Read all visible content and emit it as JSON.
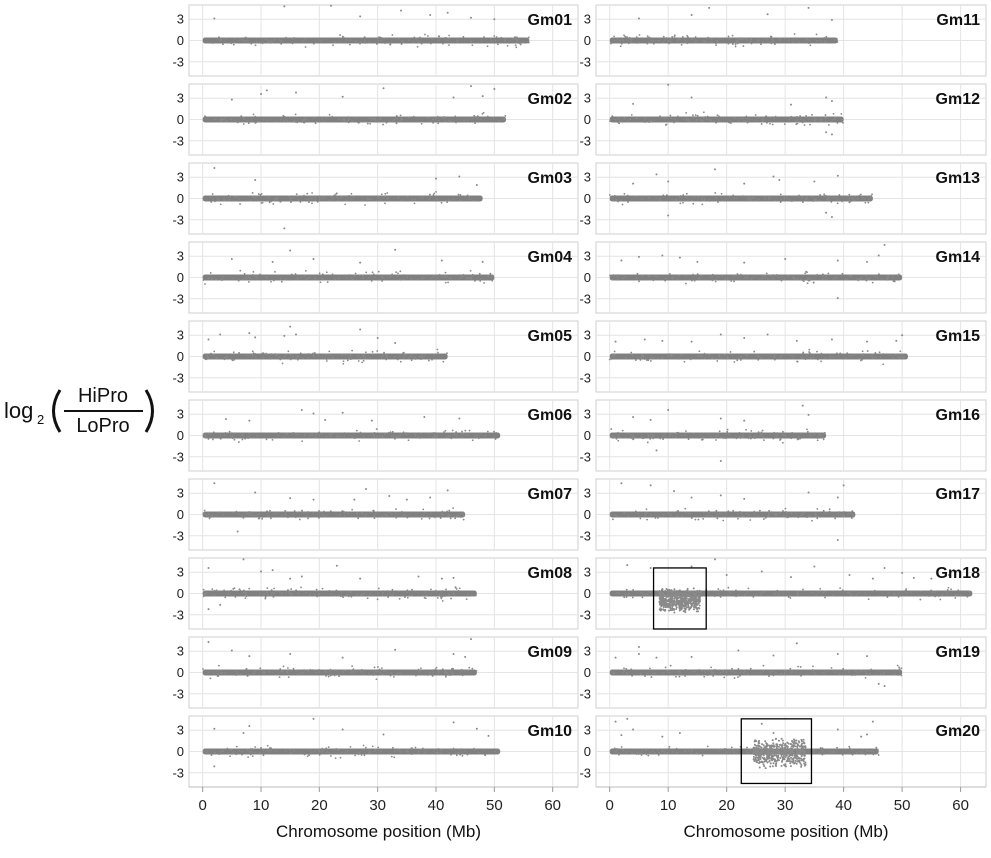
{
  "chart_data": {
    "type": "scatter",
    "ylabel": {
      "prefix": "log",
      "subscript": "2",
      "numerator": "HiPro",
      "denominator": "LoPro"
    },
    "xlabel": "Chromosome position (Mb)",
    "xlim": [
      -2,
      64
    ],
    "ylim": [
      -5,
      5
    ],
    "xticks": [
      0,
      10,
      20,
      30,
      40,
      50,
      60
    ],
    "yticks": [
      3,
      0,
      -3
    ],
    "grid": true,
    "point_color": "#808080",
    "box_color": "#000000",
    "chromosomes": [
      {
        "name": "Gm01",
        "length": 56,
        "outliers": [
          [
            2,
            3.1
          ],
          [
            14,
            4.8
          ],
          [
            22,
            4.9
          ],
          [
            27,
            3.4
          ],
          [
            34,
            4.2
          ],
          [
            39,
            3.6
          ],
          [
            42,
            3.9
          ],
          [
            46,
            3.2
          ],
          [
            50,
            3.0
          ]
        ]
      },
      {
        "name": "Gm02",
        "length": 52,
        "outliers": [
          [
            10,
            3.6
          ],
          [
            11,
            4.1
          ],
          [
            16,
            3.8
          ],
          [
            24,
            3.2
          ],
          [
            31,
            4.4
          ],
          [
            43,
            3.1
          ],
          [
            46,
            4.7
          ],
          [
            48,
            3.3
          ],
          [
            50,
            4.3
          ],
          [
            5,
            2.8
          ]
        ]
      },
      {
        "name": "Gm03",
        "length": 48,
        "outliers": [
          [
            2,
            4.3
          ],
          [
            9,
            2.6
          ],
          [
            40,
            2.8
          ],
          [
            44,
            3.1
          ],
          [
            47,
            1.9
          ],
          [
            14,
            -4.2
          ]
        ]
      },
      {
        "name": "Gm04",
        "length": 50,
        "outliers": [
          [
            5,
            2.6
          ],
          [
            12,
            2.2
          ],
          [
            15,
            3.8
          ],
          [
            19,
            2.6
          ],
          [
            27,
            2.1
          ],
          [
            33,
            3.9
          ],
          [
            41,
            2.4
          ],
          [
            48,
            2.2
          ]
        ]
      },
      {
        "name": "Gm05",
        "length": 42,
        "outliers": [
          [
            1,
            2.4
          ],
          [
            3,
            3.1
          ],
          [
            8,
            3.3
          ],
          [
            9,
            2.7
          ],
          [
            14,
            2.9
          ],
          [
            15,
            4.2
          ],
          [
            16,
            3.1
          ],
          [
            27,
            3.8
          ],
          [
            30,
            2.6
          ],
          [
            33,
            1.9
          ]
        ]
      },
      {
        "name": "Gm06",
        "length": 51,
        "outliers": [
          [
            4,
            2.3
          ],
          [
            8,
            2.1
          ],
          [
            17,
            3.6
          ],
          [
            19,
            3.1
          ],
          [
            21,
            2.2
          ],
          [
            24,
            3.2
          ],
          [
            29,
            2.1
          ],
          [
            38,
            2.6
          ],
          [
            44,
            2.4
          ]
        ]
      },
      {
        "name": "Gm07",
        "length": 45,
        "outliers": [
          [
            2,
            4.4
          ],
          [
            9,
            3.1
          ],
          [
            15,
            2.3
          ],
          [
            19,
            2.1
          ],
          [
            26,
            2.1
          ],
          [
            28,
            3.6
          ],
          [
            32,
            2.6
          ],
          [
            35,
            2.1
          ],
          [
            39,
            2.4
          ],
          [
            42,
            3.4
          ],
          [
            6,
            -2.4
          ]
        ]
      },
      {
        "name": "Gm08",
        "length": 47,
        "outliers": [
          [
            1,
            3.6
          ],
          [
            7,
            4.8
          ],
          [
            10,
            3.1
          ],
          [
            12,
            3.3
          ],
          [
            15,
            2.1
          ],
          [
            17,
            2.4
          ],
          [
            23,
            3.9
          ],
          [
            27,
            2.1
          ],
          [
            37,
            2.4
          ],
          [
            41,
            2.1
          ],
          [
            43,
            2.2
          ],
          [
            1,
            -2.2
          ],
          [
            3,
            -1.6
          ]
        ]
      },
      {
        "name": "Gm09",
        "length": 47,
        "outliers": [
          [
            1,
            4.3
          ],
          [
            5,
            3.1
          ],
          [
            8,
            2.3
          ],
          [
            15,
            2.6
          ],
          [
            24,
            2.1
          ],
          [
            33,
            3.2
          ],
          [
            43,
            2.6
          ],
          [
            46,
            4.7
          ],
          [
            45,
            2.2
          ]
        ]
      },
      {
        "name": "Gm10",
        "length": 51,
        "outliers": [
          [
            2,
            3.2
          ],
          [
            7,
            2.6
          ],
          [
            8,
            3.6
          ],
          [
            19,
            4.6
          ],
          [
            24,
            3.1
          ],
          [
            31,
            2.4
          ],
          [
            43,
            4.1
          ],
          [
            47,
            3.2
          ],
          [
            49,
            2.2
          ],
          [
            2,
            -2.1
          ]
        ]
      },
      {
        "name": "Gm11",
        "length": 39,
        "outliers": [
          [
            5,
            3.1
          ],
          [
            14,
            3.6
          ],
          [
            17,
            4.6
          ],
          [
            27,
            3.7
          ],
          [
            34,
            4.6
          ],
          [
            38,
            2.9
          ]
        ]
      },
      {
        "name": "Gm12",
        "length": 40,
        "outliers": [
          [
            4,
            2.2
          ],
          [
            10,
            4.9
          ],
          [
            14,
            3.1
          ],
          [
            31,
            2.1
          ],
          [
            37,
            3.1
          ],
          [
            38,
            2.6
          ],
          [
            37,
            -1.8
          ],
          [
            38,
            -2.1
          ]
        ]
      },
      {
        "name": "Gm13",
        "length": 45,
        "outliers": [
          [
            4,
            2.1
          ],
          [
            8,
            3.4
          ],
          [
            10,
            2.4
          ],
          [
            18,
            4.1
          ],
          [
            23,
            2.1
          ],
          [
            28,
            3.1
          ],
          [
            29,
            2.6
          ],
          [
            35,
            2.4
          ],
          [
            39,
            3.2
          ],
          [
            10,
            -2.4
          ],
          [
            38,
            -2.6
          ],
          [
            37,
            -2.0
          ]
        ]
      },
      {
        "name": "Gm14",
        "length": 50,
        "outliers": [
          [
            2,
            2.4
          ],
          [
            5,
            2.9
          ],
          [
            9,
            3.1
          ],
          [
            12,
            2.8
          ],
          [
            15,
            2.2
          ],
          [
            23,
            2.1
          ],
          [
            30,
            2.6
          ],
          [
            39,
            2.4
          ],
          [
            44,
            2.2
          ],
          [
            47,
            4.6
          ],
          [
            46,
            3.1
          ],
          [
            39,
            -2.9
          ]
        ]
      },
      {
        "name": "Gm15",
        "length": 51,
        "outliers": [
          [
            1,
            2.1
          ],
          [
            6,
            2.4
          ],
          [
            9,
            2.2
          ],
          [
            14,
            2.1
          ],
          [
            19,
            3.1
          ],
          [
            23,
            2.6
          ],
          [
            27,
            3.1
          ],
          [
            32,
            2.2
          ],
          [
            38,
            2.4
          ],
          [
            44,
            2.1
          ],
          [
            49,
            2.2
          ],
          [
            50,
            3.0
          ]
        ]
      },
      {
        "name": "Gm16",
        "length": 37,
        "outliers": [
          [
            4,
            2.6
          ],
          [
            7,
            2.2
          ],
          [
            10,
            3.6
          ],
          [
            19,
            2.4
          ],
          [
            23,
            2.1
          ],
          [
            33,
            4.2
          ],
          [
            34,
            2.9
          ],
          [
            19,
            -3.6
          ],
          [
            8,
            -2.1
          ]
        ]
      },
      {
        "name": "Gm17",
        "length": 42,
        "outliers": [
          [
            2,
            4.4
          ],
          [
            7,
            4.1
          ],
          [
            11,
            3.3
          ],
          [
            14,
            2.4
          ],
          [
            19,
            2.7
          ],
          [
            23,
            2.2
          ],
          [
            34,
            3.1
          ],
          [
            40,
            4.1
          ],
          [
            39,
            2.4
          ],
          [
            39,
            -3.6
          ]
        ]
      },
      {
        "name": "Gm18",
        "length": 62,
        "outliers": [
          [
            3,
            4.0
          ],
          [
            7,
            3.6
          ],
          [
            14,
            3.8
          ],
          [
            18,
            4.8
          ],
          [
            20,
            2.6
          ],
          [
            26,
            3.1
          ],
          [
            31,
            2.3
          ],
          [
            35,
            3.8
          ],
          [
            41,
            2.6
          ],
          [
            45,
            2.1
          ],
          [
            47,
            3.6
          ],
          [
            50,
            2.9
          ],
          [
            52,
            2.2
          ],
          [
            55,
            2.1
          ],
          [
            58,
            2.6
          ]
        ]
      },
      {
        "name": "Gm19",
        "length": 50,
        "outliers": [
          [
            1,
            2.1
          ],
          [
            5,
            3.6
          ],
          [
            5,
            2.6
          ],
          [
            8,
            2.1
          ],
          [
            14,
            2.2
          ],
          [
            22,
            3.1
          ],
          [
            28,
            2.4
          ],
          [
            32,
            4.1
          ],
          [
            39,
            2.6
          ],
          [
            44,
            2.3
          ],
          [
            46,
            -1.6
          ],
          [
            47,
            -1.9
          ]
        ]
      },
      {
        "name": "Gm20",
        "length": 46,
        "outliers": [
          [
            1,
            4.2
          ],
          [
            3,
            4.6
          ],
          [
            4,
            3.1
          ],
          [
            9,
            2.1
          ],
          [
            12,
            2.6
          ],
          [
            26,
            3.9
          ],
          [
            28,
            2.6
          ],
          [
            39,
            3.1
          ],
          [
            44,
            2.4
          ],
          [
            45,
            4.2
          ],
          [
            43,
            2.1
          ],
          [
            2,
            2.3
          ]
        ]
      }
    ],
    "highlight_regions": [
      {
        "chromosome": "Gm18",
        "x": [
          7.5,
          16.5
        ],
        "y": [
          -5,
          3.6
        ]
      },
      {
        "chromosome": "Gm20",
        "x": [
          22.5,
          34.5
        ],
        "y": [
          -4.5,
          4.6
        ]
      }
    ],
    "dispersed_regions": [
      {
        "chromosome": "Gm18",
        "x": [
          8.5,
          15.5
        ],
        "y_low": -2.8,
        "y_high": 0.8
      },
      {
        "chromosome": "Gm20",
        "x": [
          24.5,
          33.5
        ],
        "y_low": -2.4,
        "y_high": 1.9
      }
    ]
  }
}
